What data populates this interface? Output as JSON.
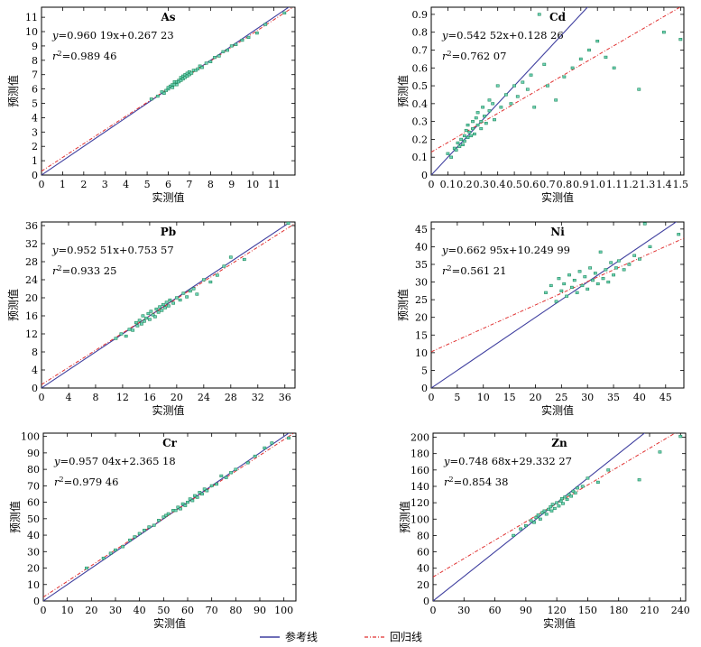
{
  "colors": {
    "reference_line": "#3f3f9f",
    "regression_line": "#e03030",
    "points_fill": "#6fd3b8",
    "points_stroke": "#1f8a5b",
    "axes": "#000000"
  },
  "legend": {
    "reference_label": "参考线",
    "regression_label": "回归线"
  },
  "chart_data": [
    {
      "type": "scatter",
      "title": "As",
      "xlabel": "实测值",
      "ylabel": "预测值",
      "equation_prefix": "y",
      "equation_body": "=0.960 19x+0.267 23",
      "r2_label": "r",
      "r2_value": "=0.989 46",
      "xlim": [
        0,
        12
      ],
      "ylim": [
        0,
        11.7
      ],
      "xticks": [
        "0",
        "1",
        "2",
        "3",
        "4",
        "5",
        "6",
        "7",
        "8",
        "9",
        "10",
        "11"
      ],
      "xtick_values": [
        0,
        1,
        2,
        3,
        4,
        5,
        6,
        7,
        8,
        9,
        10,
        11
      ],
      "yticks": [
        "0",
        "1",
        "2",
        "3",
        "4",
        "5",
        "6",
        "7",
        "8",
        "9",
        "10",
        "11"
      ],
      "ytick_values": [
        0,
        1,
        2,
        3,
        4,
        5,
        6,
        7,
        8,
        9,
        10,
        11
      ],
      "slope": 0.96019,
      "intercept": 0.26723,
      "x": [
        5.2,
        5.5,
        5.7,
        5.8,
        5.9,
        6.0,
        6.0,
        6.1,
        6.2,
        6.2,
        6.3,
        6.3,
        6.4,
        6.4,
        6.5,
        6.5,
        6.6,
        6.6,
        6.7,
        6.7,
        6.8,
        6.8,
        6.9,
        6.9,
        7.0,
        7.0,
        7.1,
        7.2,
        7.3,
        7.4,
        7.5,
        7.6,
        7.8,
        8.0,
        8.2,
        8.4,
        8.6,
        8.8,
        9.0,
        9.2,
        9.5,
        9.8,
        10.2,
        10.6,
        11.5
      ],
      "y": [
        5.3,
        5.5,
        5.8,
        5.7,
        5.9,
        6.0,
        6.1,
        6.2,
        6.1,
        6.3,
        6.3,
        6.5,
        6.3,
        6.5,
        6.6,
        6.5,
        6.6,
        6.8,
        6.7,
        6.9,
        6.8,
        7.0,
        6.9,
        7.1,
        7.0,
        7.2,
        7.1,
        7.3,
        7.3,
        7.4,
        7.6,
        7.5,
        7.8,
        7.9,
        8.2,
        8.3,
        8.6,
        8.7,
        9.0,
        9.1,
        9.4,
        9.6,
        9.9,
        10.5,
        11.3
      ]
    },
    {
      "type": "scatter",
      "title": "Cd",
      "xlabel": "实测值",
      "ylabel": "预测值",
      "equation_prefix": "y",
      "equation_body": "=0.542 52x+0.128 26",
      "r2_label": "r",
      "r2_value": "=0.762 07",
      "xlim": [
        0,
        1.52
      ],
      "ylim": [
        0,
        0.94
      ],
      "xticks": [
        "0",
        "0.1",
        "0.2",
        "0.3",
        "0.4",
        "0.5",
        "0.6",
        "0.7",
        "0.8",
        "0.9",
        "1.0",
        "1.1",
        "1.2",
        "1.3",
        "1.4",
        "1.5"
      ],
      "xtick_values": [
        0,
        0.1,
        0.2,
        0.3,
        0.4,
        0.5,
        0.6,
        0.7,
        0.8,
        0.9,
        1.0,
        1.1,
        1.2,
        1.3,
        1.4,
        1.5
      ],
      "yticks": [
        "0",
        "0.1",
        "0.2",
        "0.3",
        "0.4",
        "0.5",
        "0.6",
        "0.7",
        "0.8",
        "0.9"
      ],
      "ytick_values": [
        0,
        0.1,
        0.2,
        0.3,
        0.4,
        0.5,
        0.6,
        0.7,
        0.8,
        0.9
      ],
      "slope": 0.54252,
      "intercept": 0.12826,
      "x": [
        0.1,
        0.12,
        0.14,
        0.15,
        0.16,
        0.17,
        0.18,
        0.19,
        0.2,
        0.2,
        0.21,
        0.22,
        0.22,
        0.23,
        0.24,
        0.25,
        0.25,
        0.26,
        0.27,
        0.28,
        0.28,
        0.3,
        0.3,
        0.31,
        0.32,
        0.33,
        0.35,
        0.35,
        0.37,
        0.38,
        0.4,
        0.42,
        0.45,
        0.48,
        0.5,
        0.52,
        0.55,
        0.58,
        0.6,
        0.62,
        0.65,
        0.68,
        0.7,
        0.75,
        0.8,
        0.85,
        0.9,
        0.95,
        1.0,
        1.05,
        1.1,
        1.25,
        1.4,
        1.5
      ],
      "y": [
        0.12,
        0.1,
        0.15,
        0.14,
        0.18,
        0.16,
        0.2,
        0.17,
        0.22,
        0.19,
        0.25,
        0.21,
        0.28,
        0.24,
        0.22,
        0.3,
        0.26,
        0.23,
        0.32,
        0.28,
        0.35,
        0.3,
        0.26,
        0.38,
        0.33,
        0.29,
        0.42,
        0.36,
        0.4,
        0.31,
        0.5,
        0.38,
        0.45,
        0.4,
        0.5,
        0.44,
        0.52,
        0.48,
        0.56,
        0.38,
        0.9,
        0.62,
        0.5,
        0.42,
        0.55,
        0.6,
        0.65,
        0.7,
        0.75,
        0.66,
        0.6,
        0.48,
        0.8,
        0.76
      ]
    },
    {
      "type": "scatter",
      "title": "Pb",
      "xlabel": "实测值",
      "ylabel": "预测值",
      "equation_prefix": "y",
      "equation_body": "=0.952 51x+0.753 57",
      "r2_label": "r",
      "r2_value": "=0.933 25",
      "xlim": [
        0,
        37.5
      ],
      "ylim": [
        0,
        36.8
      ],
      "xticks": [
        "0",
        "4",
        "8",
        "12",
        "16",
        "20",
        "24",
        "28",
        "32",
        "36"
      ],
      "xtick_values": [
        0,
        4,
        8,
        12,
        16,
        20,
        24,
        28,
        32,
        36
      ],
      "yticks": [
        "0",
        "4",
        "8",
        "12",
        "16",
        "20",
        "24",
        "28",
        "32",
        "36"
      ],
      "ytick_values": [
        0,
        4,
        8,
        12,
        16,
        20,
        24,
        28,
        32,
        36
      ],
      "slope": 0.95251,
      "intercept": 0.75357,
      "x": [
        11.0,
        11.8,
        12.5,
        13.0,
        13.5,
        14.0,
        14.2,
        14.5,
        14.8,
        15.0,
        15.2,
        15.5,
        15.8,
        16.0,
        16.2,
        16.5,
        16.8,
        17.0,
        17.3,
        17.5,
        17.8,
        18.0,
        18.3,
        18.5,
        18.8,
        19.0,
        19.5,
        20.0,
        20.5,
        21.0,
        21.5,
        22.0,
        22.5,
        23.0,
        24.0,
        25.0,
        26.0,
        27.0,
        28.0,
        30.0,
        36.5
      ],
      "y": [
        11.0,
        12.0,
        11.5,
        13.0,
        12.8,
        14.5,
        13.8,
        15.0,
        14.2,
        16.0,
        14.8,
        15.5,
        16.5,
        15.2,
        17.0,
        16.2,
        15.8,
        17.5,
        16.8,
        18.0,
        17.2,
        18.5,
        17.8,
        19.0,
        18.2,
        19.5,
        18.8,
        20.0,
        19.5,
        21.0,
        20.2,
        21.5,
        22.0,
        20.8,
        24.0,
        23.5,
        25.0,
        27.0,
        29.0,
        28.5,
        36.5
      ]
    },
    {
      "type": "scatter",
      "title": "Ni",
      "xlabel": "实测值",
      "ylabel": "预测值",
      "equation_prefix": "y",
      "equation_body": "=0.662 95x+10.249 99",
      "r2_label": "r",
      "r2_value": "=0.561 21",
      "xlim": [
        0,
        48.5
      ],
      "ylim": [
        0,
        47
      ],
      "xticks": [
        "0",
        "5",
        "10",
        "15",
        "20",
        "25",
        "30",
        "35",
        "40",
        "45"
      ],
      "xtick_values": [
        0,
        5,
        10,
        15,
        20,
        25,
        30,
        35,
        40,
        45
      ],
      "yticks": [
        "0",
        "5",
        "10",
        "15",
        "20",
        "25",
        "30",
        "35",
        "40",
        "45"
      ],
      "ytick_values": [
        0,
        5,
        10,
        15,
        20,
        25,
        30,
        35,
        40,
        45
      ],
      "slope": 0.66295,
      "intercept": 10.24999,
      "x": [
        22.0,
        23.0,
        24.0,
        24.5,
        25.0,
        25.5,
        26.0,
        26.5,
        27.0,
        27.5,
        28.0,
        28.5,
        29.0,
        29.5,
        30.0,
        30.5,
        31.0,
        31.5,
        32.0,
        32.5,
        33.0,
        33.5,
        34.0,
        34.5,
        35.0,
        35.5,
        36.0,
        37.0,
        38.0,
        39.0,
        40.0,
        41.0,
        42.0,
        47.5
      ],
      "y": [
        27.0,
        29.0,
        24.5,
        31.0,
        27.5,
        29.5,
        26.0,
        32.0,
        28.5,
        30.5,
        27.0,
        33.0,
        29.0,
        31.5,
        28.0,
        34.0,
        30.5,
        32.5,
        29.5,
        38.5,
        31.0,
        33.5,
        30.0,
        35.5,
        32.0,
        34.0,
        36.0,
        33.5,
        35.0,
        37.5,
        36.5,
        46.5,
        40.0,
        43.5
      ]
    },
    {
      "type": "scatter",
      "title": "Cr",
      "xlabel": "实测值",
      "ylabel": "预测值",
      "equation_prefix": "y",
      "equation_body": "=0.957 04x+2.365 18",
      "r2_label": "r",
      "r2_value": "=0.979 46",
      "xlim": [
        0,
        105
      ],
      "ylim": [
        0,
        102
      ],
      "xticks": [
        "0",
        "10",
        "20",
        "30",
        "40",
        "50",
        "60",
        "70",
        "80",
        "90",
        "100"
      ],
      "xtick_values": [
        0,
        10,
        20,
        30,
        40,
        50,
        60,
        70,
        80,
        90,
        100
      ],
      "yticks": [
        "0",
        "10",
        "20",
        "30",
        "40",
        "50",
        "60",
        "70",
        "80",
        "90",
        "100"
      ],
      "ytick_values": [
        0,
        10,
        20,
        30,
        40,
        50,
        60,
        70,
        80,
        90,
        100
      ],
      "slope": 0.95704,
      "intercept": 2.36518,
      "x": [
        18,
        25,
        28,
        30,
        33,
        36,
        38,
        40,
        42,
        44,
        46,
        48,
        50,
        51,
        52,
        54,
        55,
        56,
        57,
        58,
        59,
        60,
        61,
        62,
        63,
        64,
        65,
        66,
        67,
        68,
        70,
        72,
        74,
        76,
        78,
        80,
        85,
        88,
        92,
        95,
        102
      ],
      "y": [
        20,
        26,
        29,
        31,
        33,
        37,
        39,
        41,
        43,
        45,
        46,
        49,
        51,
        52,
        53,
        55,
        55,
        57,
        56,
        59,
        58,
        60,
        62,
        61,
        64,
        63,
        66,
        65,
        68,
        67,
        70,
        71,
        76,
        75,
        78,
        80,
        84,
        88,
        93,
        96,
        99
      ]
    },
    {
      "type": "scatter",
      "title": "Zn",
      "xlabel": "实测值",
      "ylabel": "预测值",
      "equation_prefix": "y",
      "equation_body": "=0.748 68x+29.332 27",
      "r2_label": "r",
      "r2_value": "=0.854 38",
      "xlim": [
        0,
        245
      ],
      "ylim": [
        0,
        205
      ],
      "xticks": [
        "0",
        "30",
        "60",
        "90",
        "120",
        "150",
        "180",
        "210",
        "240"
      ],
      "xtick_values": [
        0,
        30,
        60,
        90,
        120,
        150,
        180,
        210,
        240
      ],
      "yticks": [
        "0",
        "20",
        "40",
        "60",
        "80",
        "100",
        "120",
        "140",
        "160",
        "180",
        "200"
      ],
      "ytick_values": [
        0,
        20,
        40,
        60,
        80,
        100,
        120,
        140,
        160,
        180,
        200
      ],
      "slope": 0.74868,
      "intercept": 29.33227,
      "x": [
        78,
        85,
        90,
        95,
        98,
        100,
        102,
        104,
        106,
        108,
        110,
        112,
        114,
        115,
        116,
        118,
        120,
        122,
        124,
        125,
        126,
        128,
        130,
        132,
        134,
        136,
        138,
        140,
        145,
        150,
        160,
        170,
        200,
        220,
        240
      ],
      "y": [
        80,
        88,
        92,
        98,
        96,
        102,
        105,
        100,
        108,
        110,
        106,
        112,
        115,
        110,
        118,
        113,
        120,
        116,
        122,
        125,
        119,
        127,
        124,
        130,
        128,
        134,
        132,
        138,
        140,
        150,
        145,
        160,
        148,
        182,
        201
      ]
    }
  ]
}
